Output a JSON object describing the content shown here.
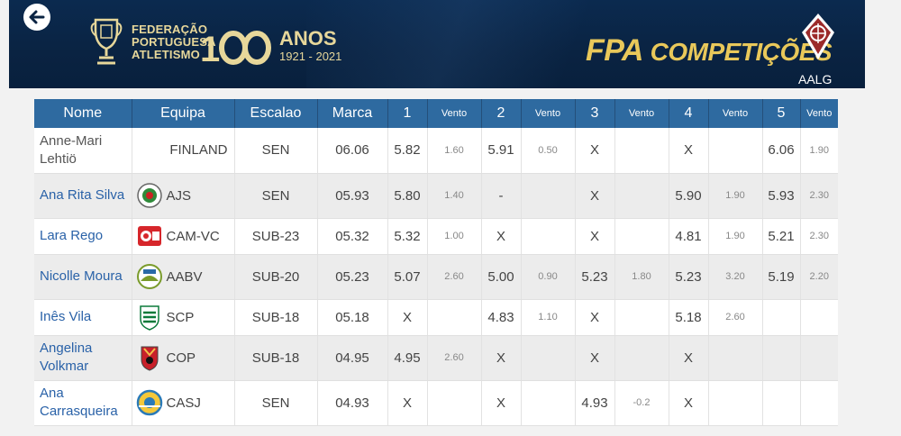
{
  "header": {
    "federation_lines": [
      "FEDERAÇÃO",
      "PORTUGUESA",
      "ATLETISMO"
    ],
    "anniversary_label": "ANOS",
    "anniversary_years": "1921 - 2021",
    "app_title": "FPA",
    "app_title_suffix": "COMPETIÇÕES",
    "association_code": "AALG",
    "colors": {
      "navy": "#0a2342",
      "gold": "#e9c85a"
    }
  },
  "table": {
    "headers": [
      "Nome",
      "Equipa",
      "Escalao",
      "Marca",
      "1",
      "Vento",
      "2",
      "Vento",
      "3",
      "Vento",
      "4",
      "Vento",
      "5",
      "Vento"
    ],
    "rows": [
      {
        "name": "Anne-Mari Lehtiö",
        "team": "FINLAND",
        "logo": "none",
        "escalao": "SEN",
        "marca": "06.06",
        "a1": "5.82",
        "v1": "1.60",
        "a2": "5.91",
        "v2": "0.50",
        "a3": "X",
        "v3": "",
        "a4": "X",
        "v4": "",
        "a5": "6.06",
        "v5": "1.90"
      },
      {
        "name": "Ana Rita Silva",
        "team": "AJS",
        "logo": "ajs-logo-icon",
        "escalao": "SEN",
        "marca": "05.93",
        "a1": "5.80",
        "v1": "1.40",
        "a2": "-",
        "v2": "",
        "a3": "X",
        "v3": "",
        "a4": "5.90",
        "v4": "1.90",
        "a5": "5.93",
        "v5": "2.30"
      },
      {
        "name": "Lara Rego",
        "team": "CAM-VC",
        "logo": "cam-vc-logo-icon",
        "escalao": "SUB-23",
        "marca": "05.32",
        "a1": "5.32",
        "v1": "1.00",
        "a2": "X",
        "v2": "",
        "a3": "X",
        "v3": "",
        "a4": "4.81",
        "v4": "1.90",
        "a5": "5.21",
        "v5": "2.30"
      },
      {
        "name": "Nicolle Moura",
        "team": "AABV",
        "logo": "aabv-logo-icon",
        "escalao": "SUB-20",
        "marca": "05.23",
        "a1": "5.07",
        "v1": "2.60",
        "a2": "5.00",
        "v2": "0.90",
        "a3": "5.23",
        "v3": "1.80",
        "a4": "5.23",
        "v4": "3.20",
        "a5": "5.19",
        "v5": "2.20"
      },
      {
        "name": "Inês Vila",
        "team": "SCP",
        "logo": "scp-logo-icon",
        "escalao": "SUB-18",
        "marca": "05.18",
        "a1": "X",
        "v1": "",
        "a2": "4.83",
        "v2": "1.10",
        "a3": "X",
        "v3": "",
        "a4": "5.18",
        "v4": "2.60",
        "a5": "",
        "v5": ""
      },
      {
        "name": "Angelina Volkmar",
        "team": "COP",
        "logo": "cop-logo-icon",
        "escalao": "SUB-18",
        "marca": "04.95",
        "a1": "4.95",
        "v1": "2.60",
        "a2": "X",
        "v2": "",
        "a3": "X",
        "v3": "",
        "a4": "X",
        "v4": "",
        "a5": "",
        "v5": ""
      },
      {
        "name": "Ana Carrasqueira",
        "team": "CASJ",
        "logo": "casj-logo-icon",
        "escalao": "SEN",
        "marca": "04.93",
        "a1": "X",
        "v1": "",
        "a2": "X",
        "v2": "",
        "a3": "4.93",
        "v3": "-0.2",
        "a4": "X",
        "v4": "",
        "a5": "",
        "v5": ""
      }
    ]
  }
}
